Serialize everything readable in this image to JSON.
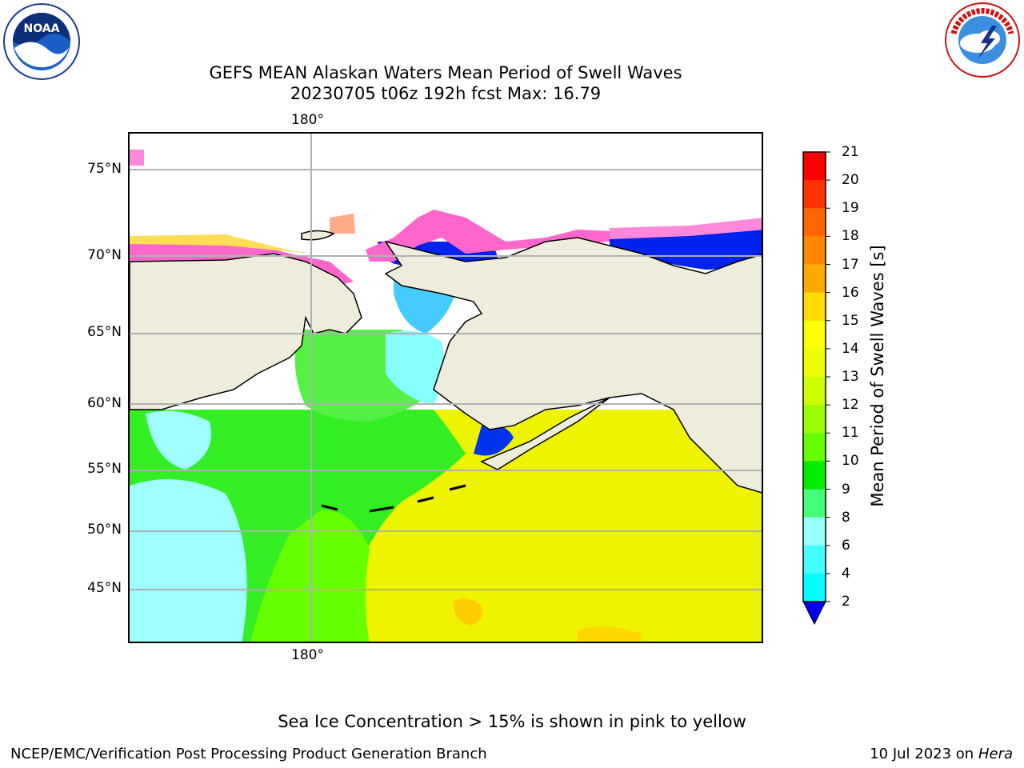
{
  "header": {
    "title_line1": "GEFS MEAN Alaskan Waters Mean Period of Swell Waves",
    "title_line2": "20230705 t06z 192h fcst   Max: 16.79"
  },
  "logos": {
    "left": {
      "icon": "noaa-logo",
      "text": "NOAA",
      "ring_text": "NATIONAL OCEANIC AND ATMOSPHERIC ADMINISTRATION · U.S. DEPARTMENT OF COMMERCE"
    },
    "right": {
      "icon": "nws-logo",
      "ring_text": "NATIONAL WEATHER SERVICE"
    }
  },
  "map": {
    "lon_label_top": "180°",
    "lon_label_bottom": "180°",
    "lat_labels": [
      "75°N",
      "70°N",
      "65°N",
      "60°N",
      "55°N",
      "50°N",
      "45°N"
    ],
    "colors": {
      "land": "#eeeddc",
      "frame": "#000000",
      "grid": "#b0b0b0"
    }
  },
  "colorbar": {
    "title": "Mean Period of Swell Waves [s]",
    "ticks": [
      "21",
      "20",
      "19",
      "18",
      "17",
      "16",
      "15",
      "14",
      "13",
      "12",
      "11",
      "10",
      "9",
      "8",
      "6",
      "4",
      "2"
    ],
    "colors": [
      "#ff0000",
      "#ff3300",
      "#ff6600",
      "#ff8800",
      "#ffaa00",
      "#ffdd00",
      "#ffff00",
      "#eeff00",
      "#ccff00",
      "#99ff00",
      "#66ff00",
      "#00ee00",
      "#44ff77",
      "#99ffff",
      "#44ffff",
      "#00ffff",
      "#00ccff",
      "#0077ff",
      "#0000ee"
    ]
  },
  "caption": "Sea Ice Concentration > 15% is shown in pink to yellow",
  "footer": {
    "left": "NCEP/EMC/Verification Post Processing Product Generation Branch",
    "right_prefix": "10 Jul 2023 on ",
    "right_host": "Hera"
  }
}
